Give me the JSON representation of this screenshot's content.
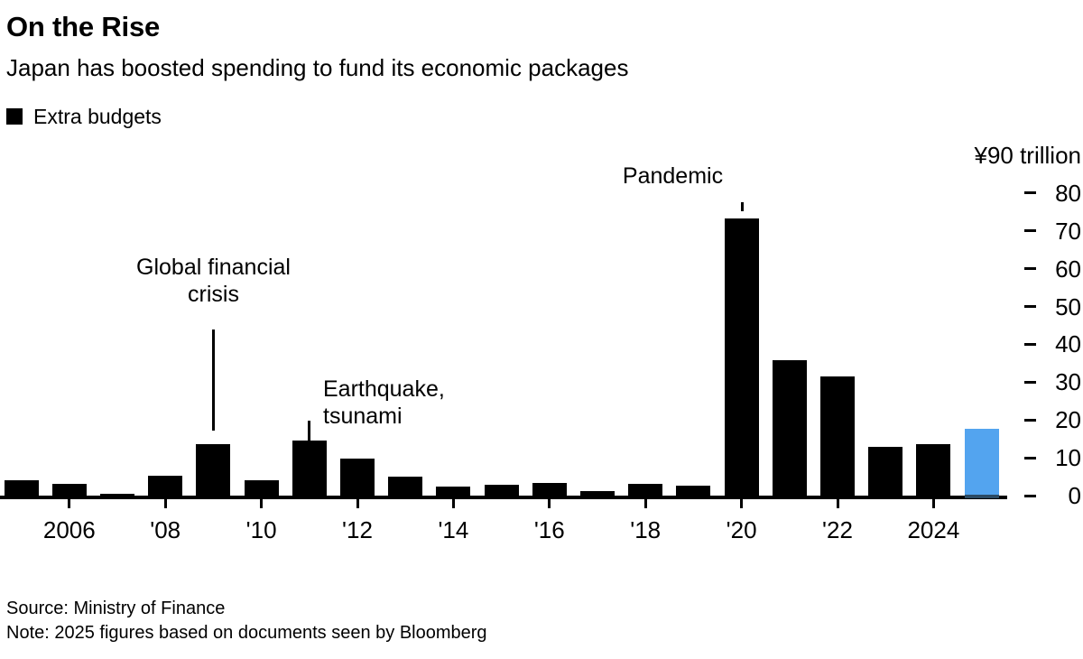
{
  "header": {
    "title": "On the Rise",
    "subtitle": "Japan has boosted spending to fund its economic packages",
    "legend": {
      "label": "Extra budgets",
      "swatch_color": "#000000"
    }
  },
  "chart_data": {
    "type": "bar",
    "title": "On the Rise",
    "subtitle": "Japan has boosted spending to fund its economic packages",
    "series_name": "Extra budgets",
    "unit_label": "¥90 trillion",
    "ylabel": "trillion yen",
    "ylim": [
      0,
      90
    ],
    "yticks": [
      0,
      10,
      20,
      30,
      40,
      50,
      60,
      70,
      80
    ],
    "grid": false,
    "legend_position": "top-left",
    "x": [
      2005,
      2006,
      2007,
      2008,
      2009,
      2010,
      2011,
      2012,
      2013,
      2014,
      2015,
      2016,
      2017,
      2018,
      2019,
      2020,
      2021,
      2022,
      2023,
      2024,
      2025
    ],
    "values": [
      4.1,
      3.2,
      0.5,
      5.3,
      13.6,
      4.1,
      14.6,
      9.9,
      5.0,
      2.4,
      2.9,
      3.3,
      1.2,
      3.2,
      2.7,
      73.3,
      35.8,
      31.5,
      13.0,
      13.7,
      17.7
    ],
    "bar_color": "#000000",
    "highlight": {
      "year": 2025,
      "color": "#53A4EF",
      "base_color": "#2B4A63"
    },
    "xtick_labels": [
      {
        "year": 2006,
        "label": "2006"
      },
      {
        "year": 2008,
        "label": "'08"
      },
      {
        "year": 2010,
        "label": "'10"
      },
      {
        "year": 2012,
        "label": "'12"
      },
      {
        "year": 2014,
        "label": "'14"
      },
      {
        "year": 2016,
        "label": "'16"
      },
      {
        "year": 2018,
        "label": "'18"
      },
      {
        "year": 2020,
        "label": "'20"
      },
      {
        "year": 2022,
        "label": "'22"
      },
      {
        "year": 2024,
        "label": "2024"
      }
    ],
    "annotations": [
      {
        "id": "gfc",
        "lines": [
          "Global financial",
          "crisis"
        ],
        "target_year": 2009
      },
      {
        "id": "quake",
        "lines": [
          "Earthquake,",
          "tsunami"
        ],
        "target_year": 2011
      },
      {
        "id": "pandemic",
        "lines": [
          "Pandemic"
        ],
        "target_year": 2020
      }
    ]
  },
  "footer": {
    "source": "Source: Ministry of Finance",
    "note": "Note: 2025 figures based on documents seen by Bloomberg"
  }
}
